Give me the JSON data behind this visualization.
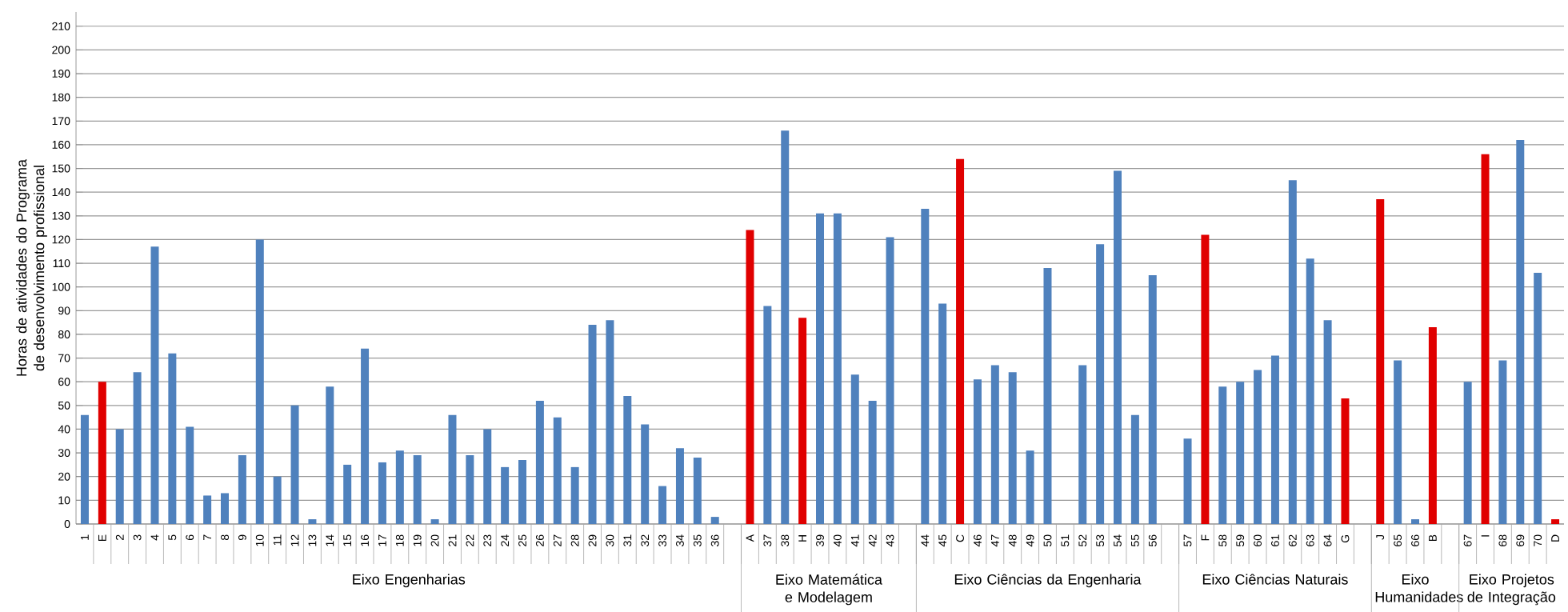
{
  "chart_data": {
    "type": "bar",
    "ylabel": "Horas de atividades do Programa de desenvolvimento profissional",
    "categories": [
      "1",
      "E",
      "2",
      "3",
      "4",
      "5",
      "6",
      "7",
      "8",
      "9",
      "10",
      "11",
      "12",
      "13",
      "14",
      "15",
      "16",
      "17",
      "18",
      "19",
      "20",
      "21",
      "22",
      "23",
      "24",
      "25",
      "26",
      "27",
      "28",
      "29",
      "30",
      "31",
      "32",
      "33",
      "34",
      "35",
      "36",
      null,
      "A",
      "37",
      "38",
      "H",
      "39",
      "40",
      "41",
      "42",
      "43",
      null,
      "44",
      "45",
      "C",
      "46",
      "47",
      "48",
      "49",
      "50",
      "51",
      "52",
      "53",
      "54",
      "55",
      "56",
      null,
      "57",
      "F",
      "58",
      "59",
      "60",
      "61",
      "62",
      "63",
      "64",
      "G",
      null,
      "J",
      "65",
      "66",
      "B",
      null,
      "67",
      "I",
      "68",
      "69",
      "70",
      "D"
    ],
    "values": [
      46,
      60,
      40,
      64,
      117,
      72,
      41,
      12,
      13,
      29,
      120,
      20,
      50,
      2,
      58,
      25,
      74,
      26,
      31,
      29,
      2,
      46,
      29,
      40,
      24,
      27,
      52,
      45,
      24,
      84,
      86,
      54,
      42,
      16,
      32,
      28,
      3,
      null,
      124,
      92,
      166,
      87,
      131,
      131,
      63,
      52,
      121,
      null,
      133,
      93,
      154,
      61,
      67,
      64,
      31,
      108,
      0,
      67,
      118,
      149,
      46,
      105,
      null,
      36,
      122,
      58,
      60,
      65,
      71,
      145,
      112,
      86,
      53,
      null,
      137,
      69,
      2,
      83,
      null,
      60,
      156,
      69,
      162,
      106,
      2
    ],
    "colors": [
      "#4f81bd",
      "#e00000",
      "#4f81bd",
      "#4f81bd",
      "#4f81bd",
      "#4f81bd",
      "#4f81bd",
      "#4f81bd",
      "#4f81bd",
      "#4f81bd",
      "#4f81bd",
      "#4f81bd",
      "#4f81bd",
      "#4f81bd",
      "#4f81bd",
      "#4f81bd",
      "#4f81bd",
      "#4f81bd",
      "#4f81bd",
      "#4f81bd",
      "#4f81bd",
      "#4f81bd",
      "#4f81bd",
      "#4f81bd",
      "#4f81bd",
      "#4f81bd",
      "#4f81bd",
      "#4f81bd",
      "#4f81bd",
      "#4f81bd",
      "#4f81bd",
      "#4f81bd",
      "#4f81bd",
      "#4f81bd",
      "#4f81bd",
      "#4f81bd",
      "#4f81bd",
      "#4f81bd",
      "#e00000",
      "#4f81bd",
      "#4f81bd",
      "#e00000",
      "#4f81bd",
      "#4f81bd",
      "#4f81bd",
      "#4f81bd",
      "#4f81bd",
      "#4f81bd",
      "#4f81bd",
      "#4f81bd",
      "#e00000",
      "#4f81bd",
      "#4f81bd",
      "#4f81bd",
      "#4f81bd",
      "#4f81bd",
      "#4f81bd",
      "#4f81bd",
      "#4f81bd",
      "#4f81bd",
      "#4f81bd",
      "#4f81bd",
      "#4f81bd",
      "#4f81bd",
      "#e00000",
      "#4f81bd",
      "#4f81bd",
      "#4f81bd",
      "#4f81bd",
      "#4f81bd",
      "#4f81bd",
      "#4f81bd",
      "#e00000",
      "#4f81bd",
      "#e00000",
      "#4f81bd",
      "#4f81bd",
      "#e00000",
      "#4f81bd",
      "#4f81bd",
      "#e00000",
      "#4f81bd",
      "#4f81bd",
      "#4f81bd",
      "#e00000"
    ],
    "ylim": [
      0,
      216
    ],
    "yticks": [
      0,
      10,
      20,
      30,
      40,
      50,
      60,
      70,
      80,
      90,
      100,
      110,
      120,
      130,
      140,
      150,
      160,
      170,
      180,
      190,
      200,
      210
    ],
    "grid": "y",
    "annotations": [
      "Eixo Engenharias",
      "Eixo Matemática e Modelagem",
      "Eixo Ciências da Engenharia",
      "Eixo Ciências Naturais",
      "Eixo Humanidades",
      "Eixo Projetos de Integração"
    ]
  }
}
